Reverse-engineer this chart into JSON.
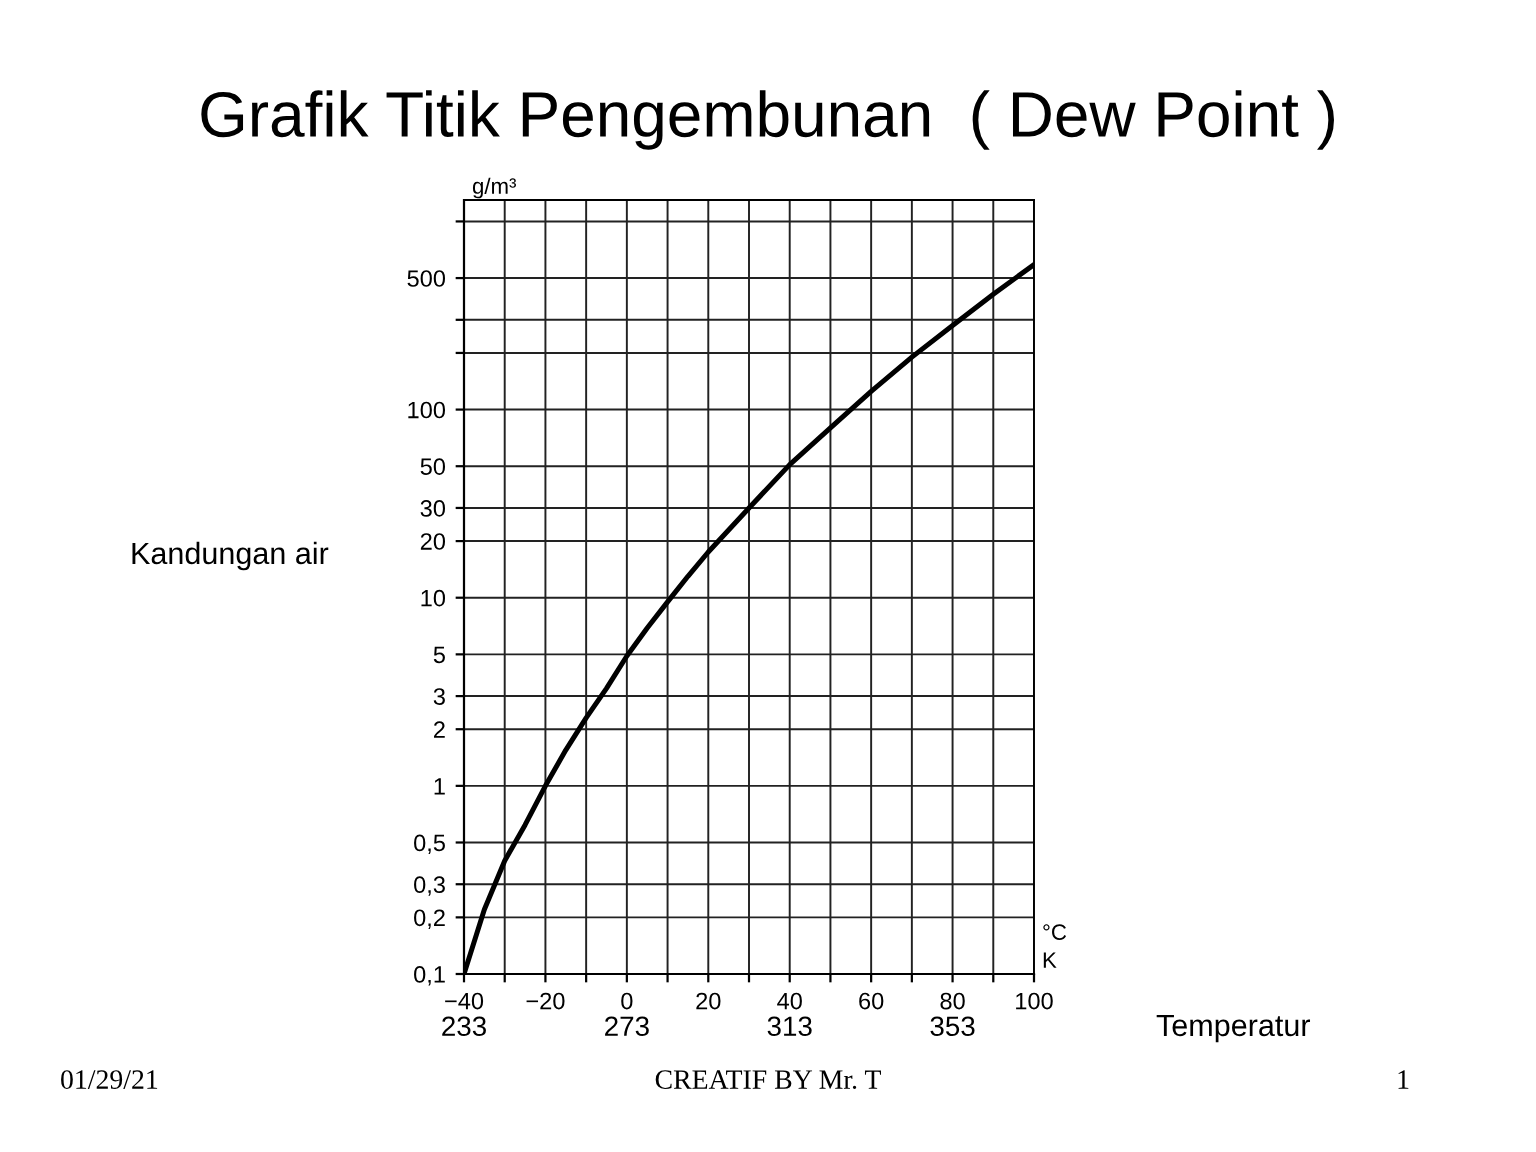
{
  "chart_data": {
    "type": "line",
    "title": "Grafik Titik Pengembunan  ( Dew Point )",
    "xlabel": "Temperatur",
    "ylabel": "Kandungan air",
    "x": [
      -40,
      -35,
      -30,
      -25,
      -20,
      -15,
      -10,
      -5,
      0,
      5,
      10,
      15,
      20,
      30,
      40,
      50,
      60,
      70,
      80,
      90,
      100
    ],
    "series": [
      {
        "color": "#000000",
        "values": [
          0.1,
          0.22,
          0.4,
          0.62,
          1.0,
          1.55,
          2.3,
          3.3,
          4.9,
          6.9,
          9.5,
          13,
          17.5,
          30,
          51,
          80,
          125,
          190,
          280,
          410,
          590
        ]
      }
    ],
    "log": true,
    "grid": true,
    "marker": "none",
    "line_style": "solid",
    "legend": false,
    "xlim": [
      -40,
      100
    ],
    "ylim": [
      0.1,
      1300
    ],
    "xticks": [
      {
        "value": -40,
        "label": "−40"
      },
      {
        "value": -30,
        "label": null
      },
      {
        "value": -20,
        "label": "−20"
      },
      {
        "value": -10,
        "label": null
      },
      0,
      {
        "value": 10,
        "label": null
      },
      20,
      {
        "value": 30,
        "label": null
      },
      40,
      {
        "value": 50,
        "label": null
      },
      60,
      {
        "value": 70,
        "label": null
      },
      80,
      {
        "value": 90,
        "label": null
      },
      100
    ],
    "x2lim": [
      233,
      373
    ],
    "x2ticks": [
      233,
      273,
      313,
      353
    ],
    "yticks": [
      {
        "value": 0.1,
        "label": "0,1"
      },
      {
        "value": 0.2,
        "label": "0,2"
      },
      {
        "value": 0.3,
        "label": "0,3"
      },
      {
        "value": 0.5,
        "label": "0,5"
      },
      1,
      2,
      3,
      5,
      10,
      20,
      30,
      50,
      100,
      {
        "value": 200,
        "label": null
      },
      {
        "value": 300,
        "label": null
      },
      500,
      {
        "value": 1000,
        "label": null
      }
    ],
    "annotations": [
      "g/m³",
      "°C",
      "K",
      "01/29/21",
      "CREATIF BY Mr. T",
      "1"
    ]
  }
}
